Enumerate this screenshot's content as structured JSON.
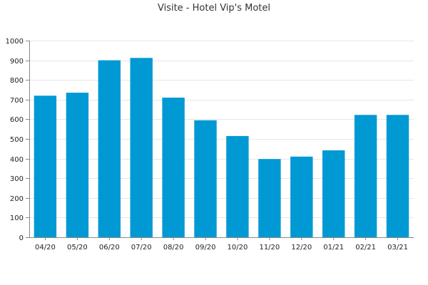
{
  "chart_data": {
    "type": "bar",
    "title": "Visite - Hotel Vip's Motel",
    "xlabel": "",
    "ylabel": "",
    "categories": [
      "04/20",
      "05/20",
      "06/20",
      "07/20",
      "08/20",
      "09/20",
      "10/20",
      "11/20",
      "12/20",
      "01/21",
      "02/21",
      "03/21"
    ],
    "values": [
      720,
      735,
      900,
      912,
      710,
      595,
      515,
      398,
      410,
      442,
      622,
      622
    ],
    "ylim": [
      0,
      1000
    ],
    "yticks": [
      0,
      100,
      200,
      300,
      400,
      500,
      600,
      700,
      800,
      900,
      1000
    ],
    "grid": true,
    "bar_color": "#0099d4"
  }
}
